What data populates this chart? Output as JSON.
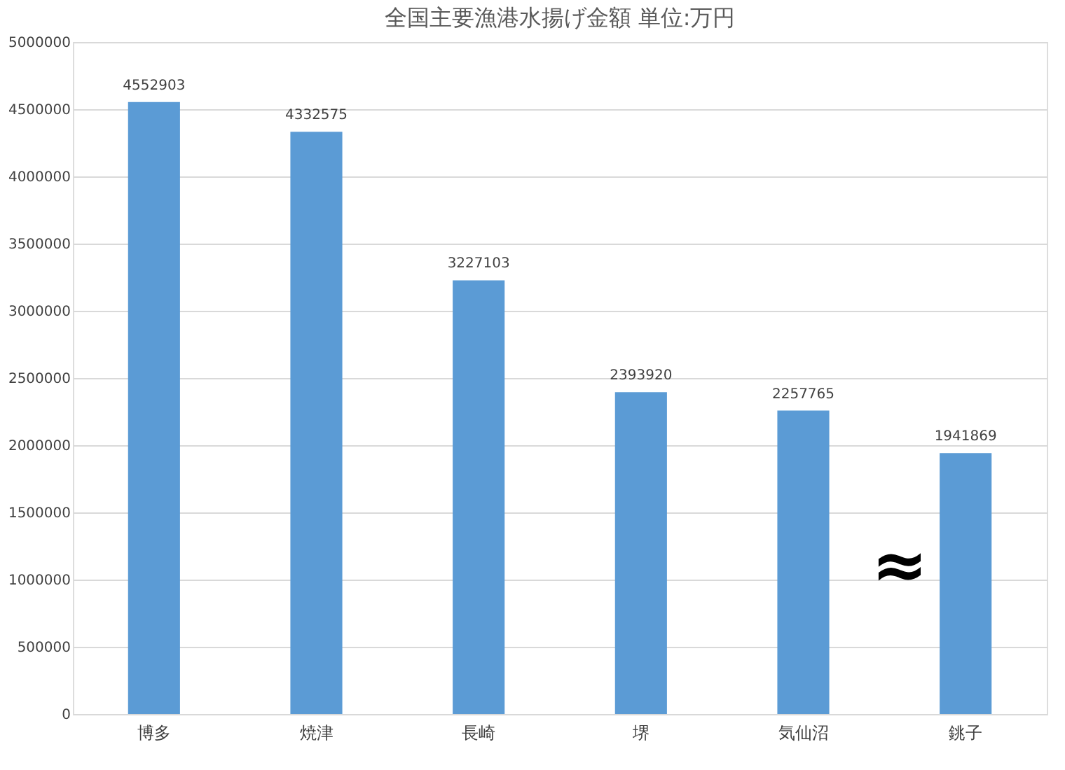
{
  "chart_data": {
    "type": "bar",
    "title": "全国主要漁港水揚げ金額  単位:万円",
    "categories": [
      "博多",
      "焼津",
      "長崎",
      "堺",
      "気仙沼",
      "銚子"
    ],
    "values": [
      4552903,
      4332575,
      3227103,
      2393920,
      2257765,
      1941869
    ],
    "color": "#5b9bd5",
    "ylim": [
      0,
      5000000
    ],
    "yticks": [
      0,
      500000,
      1000000,
      1500000,
      2000000,
      2500000,
      3000000,
      3500000,
      4000000,
      4500000,
      5000000
    ],
    "grid": "y",
    "data_labels": true,
    "annotations": [
      "≈"
    ]
  }
}
